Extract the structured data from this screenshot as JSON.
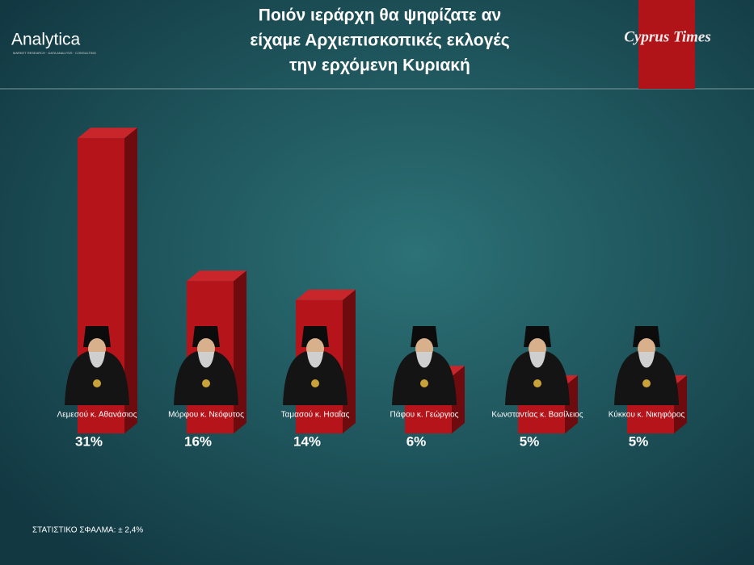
{
  "branding": {
    "logo": "Analytica",
    "logo_tagline": "MARKET RESEARCH · DATA ANALYSIS · CONSULTING",
    "publisher": "Cyprus Times"
  },
  "chart_data": {
    "type": "bar",
    "title": [
      "Ποιόν ιεράρχη θα ψηφίζατε αν",
      "είχαμε Αρχιεπισκοπικές εκλογές",
      "την ερχόμενη Κυριακή"
    ],
    "categories": [
      "Λεμεσού κ. Αθανάσιος",
      "Μόρφου κ. Νεόφυτος",
      "Ταμασού κ. Ησαΐας",
      "Πάφου κ. Γεώργιος",
      "Κωνσταντίας κ. Βασίλειος",
      "Κύκκου κ. Νικηφόρος"
    ],
    "values": [
      31,
      16,
      14,
      6,
      5,
      5
    ],
    "value_labels": [
      "31%",
      "16%",
      "14%",
      "6%",
      "5%",
      "5%"
    ],
    "color": "#b5141a",
    "note": "ΣΤΑΤΙΣΤΙΚΟ ΣΦΑΛΜΑ:  ± 2,4%"
  }
}
